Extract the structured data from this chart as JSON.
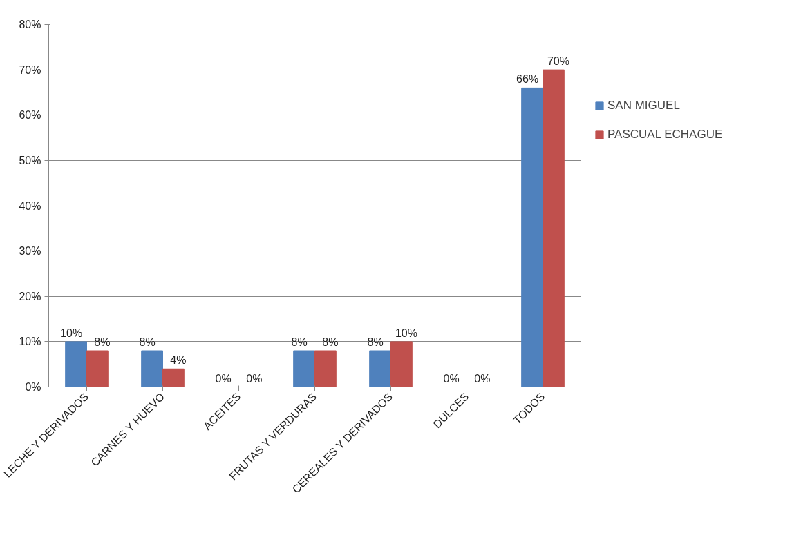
{
  "chart_data": {
    "type": "bar",
    "categories": [
      "LECHE Y DERIVADOS",
      "CARNES Y HUEVO",
      "ACEITES",
      "FRUTAS Y VERDURAS",
      "CEREALES Y DERIVADOS",
      "DULCES",
      "TODOS"
    ],
    "series": [
      {
        "name": "SAN MIGUEL",
        "color": "#4f81bd",
        "values": [
          10,
          8,
          0,
          8,
          8,
          0,
          66
        ],
        "value_labels": [
          "10%",
          "8%",
          "0%",
          "8%",
          "8%",
          "0%",
          "66%"
        ]
      },
      {
        "name": "PASCUAL ECHAGUE",
        "color": "#c0504d",
        "values": [
          8,
          4,
          0,
          8,
          10,
          0,
          70
        ],
        "value_labels": [
          "8%",
          "4%",
          "0%",
          "8%",
          "10%",
          "0%",
          "70%"
        ]
      }
    ],
    "ylim": [
      0,
      80
    ],
    "yticks": [
      {
        "value": 0,
        "label": "0%"
      },
      {
        "value": 10,
        "label": "10%"
      },
      {
        "value": 20,
        "label": "20%"
      },
      {
        "value": 30,
        "label": "30%"
      },
      {
        "value": 40,
        "label": "40%"
      },
      {
        "value": 50,
        "label": "50%"
      },
      {
        "value": 60,
        "label": "60%"
      },
      {
        "value": 70,
        "label": "70%"
      },
      {
        "value": 80,
        "label": "80%"
      }
    ],
    "grid": "y",
    "legend": "right"
  }
}
